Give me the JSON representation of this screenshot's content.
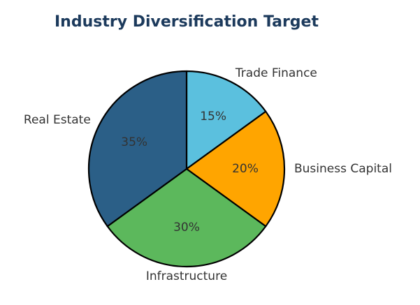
{
  "chart_data": {
    "type": "pie",
    "title": "Industry Diversification Target",
    "start_angle_deg": 90,
    "direction": "clockwise",
    "slices": [
      {
        "label": "Trade Finance",
        "value": 15,
        "pct_label": "15%",
        "color": "#5bc0de"
      },
      {
        "label": "Business Capital",
        "value": 20,
        "pct_label": "20%",
        "color": "#ffa500"
      },
      {
        "label": "Infrastructure",
        "value": 30,
        "pct_label": "30%",
        "color": "#5cb85c"
      },
      {
        "label": "Real Estate",
        "value": 35,
        "pct_label": "35%",
        "color": "#2b5f87"
      }
    ],
    "legend": "none"
  }
}
